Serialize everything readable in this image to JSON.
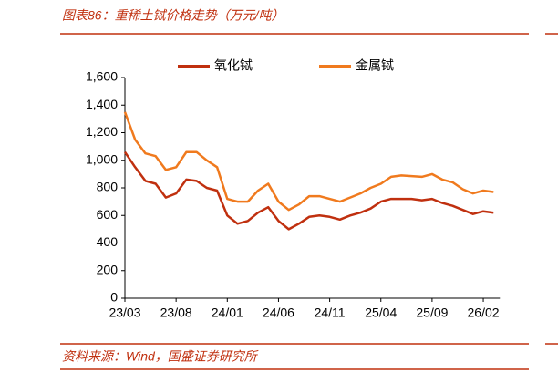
{
  "chart_data": {
    "type": "line",
    "title": "图表86：重稀土铽价格走势（万元/吨）",
    "source": "资料来源：Wind，国盛证券研究所",
    "categories": [
      "23/03",
      null,
      null,
      null,
      null,
      "23/08",
      null,
      null,
      null,
      null,
      "24/01",
      null,
      null,
      null,
      null,
      "24/06",
      null,
      null,
      null,
      null,
      "24/11",
      null,
      null,
      null,
      null,
      "25/04",
      null,
      null,
      null,
      null,
      "25/09",
      null,
      null,
      null,
      null,
      "26/02",
      null
    ],
    "series": [
      {
        "name": "氧化铽",
        "color": "#c0300f",
        "values": [
          1060,
          950,
          850,
          830,
          730,
          760,
          860,
          850,
          800,
          780,
          600,
          540,
          560,
          620,
          660,
          560,
          500,
          540,
          590,
          600,
          590,
          570,
          600,
          620,
          650,
          700,
          720,
          720,
          720,
          710,
          720,
          690,
          670,
          640,
          610,
          630,
          620
        ]
      },
      {
        "name": "金属铽",
        "color": "#f07a1e",
        "values": [
          1350,
          1150,
          1050,
          1030,
          930,
          950,
          1060,
          1060,
          1000,
          950,
          720,
          700,
          700,
          780,
          830,
          700,
          640,
          680,
          740,
          740,
          720,
          700,
          730,
          760,
          800,
          830,
          880,
          890,
          885,
          880,
          900,
          860,
          840,
          790,
          760,
          780,
          770
        ]
      }
    ],
    "ylim": [
      0,
      1600
    ],
    "yticks": [
      0,
      200,
      400,
      600,
      800,
      {
        "value": 1000,
        "label": "1,000"
      },
      {
        "value": 1200,
        "label": "1,200"
      },
      {
        "value": 1400,
        "label": "1,400"
      },
      {
        "value": 1600,
        "label": "1,600"
      }
    ]
  }
}
